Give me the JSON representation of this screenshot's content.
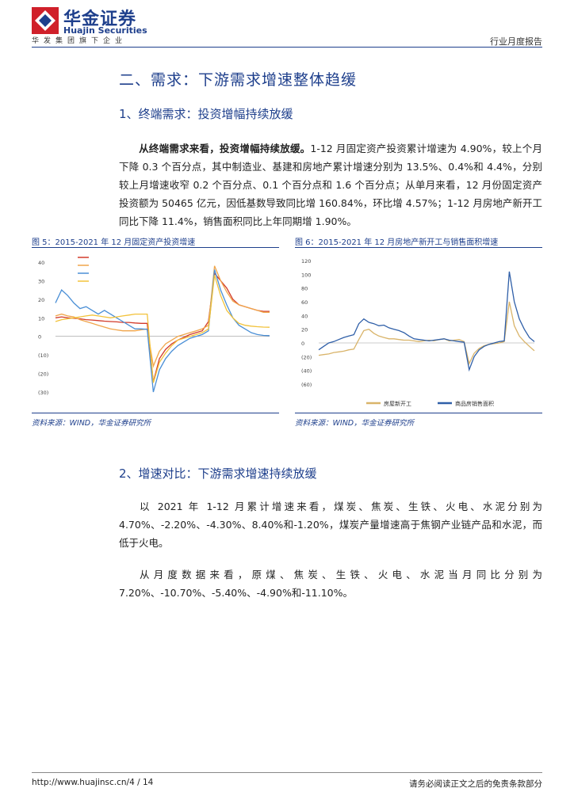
{
  "header": {
    "logo_cn": "华金证券",
    "logo_en": "Huajin Securities",
    "group": "华发集团旗下企业",
    "report_type": "行业月度报告"
  },
  "section": {
    "title": "二、需求：下游需求增速整体趋缓",
    "sub1_title": "1、终端需求：投资增幅持续放缓",
    "sub1_lead": "从终端需求来看，投资增幅持续放缓。",
    "sub1_text": "1-12 月固定资产投资累计增速为 4.90%，较上个月下降 0.3 个百分点，其中制造业、基建和房地产累计增速分别为 13.5%、0.4%和 4.4%，分别较上月增速收窄 0.2 个百分点、0.1 个百分点和 1.6 个百分点；从单月来看，12 月份固定资产投资额为 50465 亿元，因低基数导致同比增 160.84%，环比增 4.57%；1-12 月房地产新开工同比下降 11.4%，销售面积同比上年同期增 1.90%。",
    "sub2_title": "2、增速对比：下游需求增速持续放缓",
    "sub2_p1": "以 2021 年 1-12 月累计增速来看，煤炭、焦炭、生铁、火电、水泥分别为 4.70%、-2.20%、-4.30%、8.40%和-1.20%，煤炭产量增速高于焦钢产业链产品和水泥，而低于火电。",
    "sub2_p2": "从月度数据来看，原煤、焦炭、生铁、火电、水泥当月同比分别为 7.20%、-10.70%、-5.40%、-4.90%和-11.10%。"
  },
  "figure5": {
    "title": "图 5：2015-2021 年 12 月固定资产投资增速",
    "source": "资料来源：WIND，华金证券研究所"
  },
  "figure6": {
    "title": "图 6：2015-2021 年 12 月房地产新开工与销售面积增速",
    "source": "资料来源：WIND，华金证券研究所"
  },
  "footer": {
    "url": "http://www.huajinsc.cn/4 / 14",
    "note": "请务必阅读正文之后的免责条款部分"
  },
  "colors": {
    "brand": "#1e3f8c",
    "accent_red": "#d0202a"
  },
  "chart_data": [
    {
      "type": "line",
      "ylim": [
        -30,
        40
      ],
      "yticks": [
        "40",
        "30",
        "20",
        "10",
        "0",
        "(10)",
        "(20)",
        "(30)"
      ],
      "legend_position": "top",
      "series": [
        {
          "name": "",
          "color": "#d23a2a",
          "values": [
            10,
            10.5,
            10,
            9.8,
            9.5,
            9,
            8.8,
            8.5,
            8.2,
            8,
            7.8,
            7.5,
            7.5,
            7.2,
            7,
            7,
            -24.5,
            -12,
            -7,
            -4,
            -2,
            -0.5,
            1,
            2,
            3,
            8,
            34,
            30,
            26,
            20,
            17,
            16,
            15,
            14,
            13.5,
            13.5
          ]
        },
        {
          "name": "",
          "color": "#f0a54a",
          "values": [
            11,
            12,
            11,
            10.5,
            9,
            8,
            7,
            6,
            5,
            4,
            3.5,
            3,
            3,
            3,
            3.5,
            4,
            -16,
            -8,
            -4,
            -2,
            0,
            1,
            2,
            3,
            4,
            6,
            38,
            30,
            24,
            19,
            17,
            16,
            15,
            14,
            13,
            13
          ]
        },
        {
          "name": "",
          "color": "#4a8fd6",
          "values": [
            18,
            25,
            22,
            18,
            15,
            16,
            14,
            12,
            14,
            12,
            10,
            8,
            6,
            4,
            4,
            3.8,
            -30,
            -18,
            -12,
            -8,
            -5,
            -3,
            -1,
            0,
            1,
            3,
            36,
            25,
            17,
            10,
            6,
            4,
            2,
            1,
            0.5,
            0.4
          ]
        },
        {
          "name": "",
          "color": "#f2c23a",
          "values": [
            8,
            9,
            9.5,
            10,
            10.5,
            11,
            11.5,
            11,
            10.5,
            10,
            10.5,
            11,
            11.5,
            12,
            12,
            12,
            -25,
            -14,
            -9,
            -5,
            -2,
            -1,
            0,
            1,
            2,
            4,
            33,
            22,
            14,
            10,
            7,
            6,
            5.5,
            5.2,
            5,
            4.9
          ]
        }
      ]
    },
    {
      "type": "line",
      "ylim": [
        -60,
        120
      ],
      "yticks": [
        "120",
        "100",
        "80",
        "60",
        "40",
        "20",
        "0",
        "(20)",
        "(40)",
        "(60)"
      ],
      "legend_position": "bottom",
      "series": [
        {
          "name": "房屋新开工",
          "color": "#d9b46a",
          "values": [
            -18,
            -17,
            -16,
            -14,
            -13,
            -12,
            -10,
            -9,
            5,
            18,
            20,
            14,
            10,
            8,
            6,
            6,
            5,
            4,
            4,
            3,
            2,
            3,
            4,
            3,
            5,
            6,
            3,
            4,
            5,
            2,
            -30,
            -15,
            -8,
            -4,
            -2,
            -1,
            0,
            2,
            60,
            25,
            10,
            2,
            -5,
            -11.4
          ]
        },
        {
          "name": "商品房销售面积",
          "color": "#2f5fa8",
          "values": [
            -10,
            -5,
            0,
            2,
            5,
            8,
            10,
            12,
            28,
            35,
            30,
            28,
            25,
            26,
            22,
            20,
            18,
            15,
            10,
            6,
            5,
            4,
            3,
            4,
            5,
            6,
            4,
            3,
            2,
            1,
            -39,
            -20,
            -10,
            -5,
            -2,
            0,
            2,
            3,
            104,
            60,
            35,
            20,
            8,
            1.9
          ]
        }
      ]
    }
  ]
}
